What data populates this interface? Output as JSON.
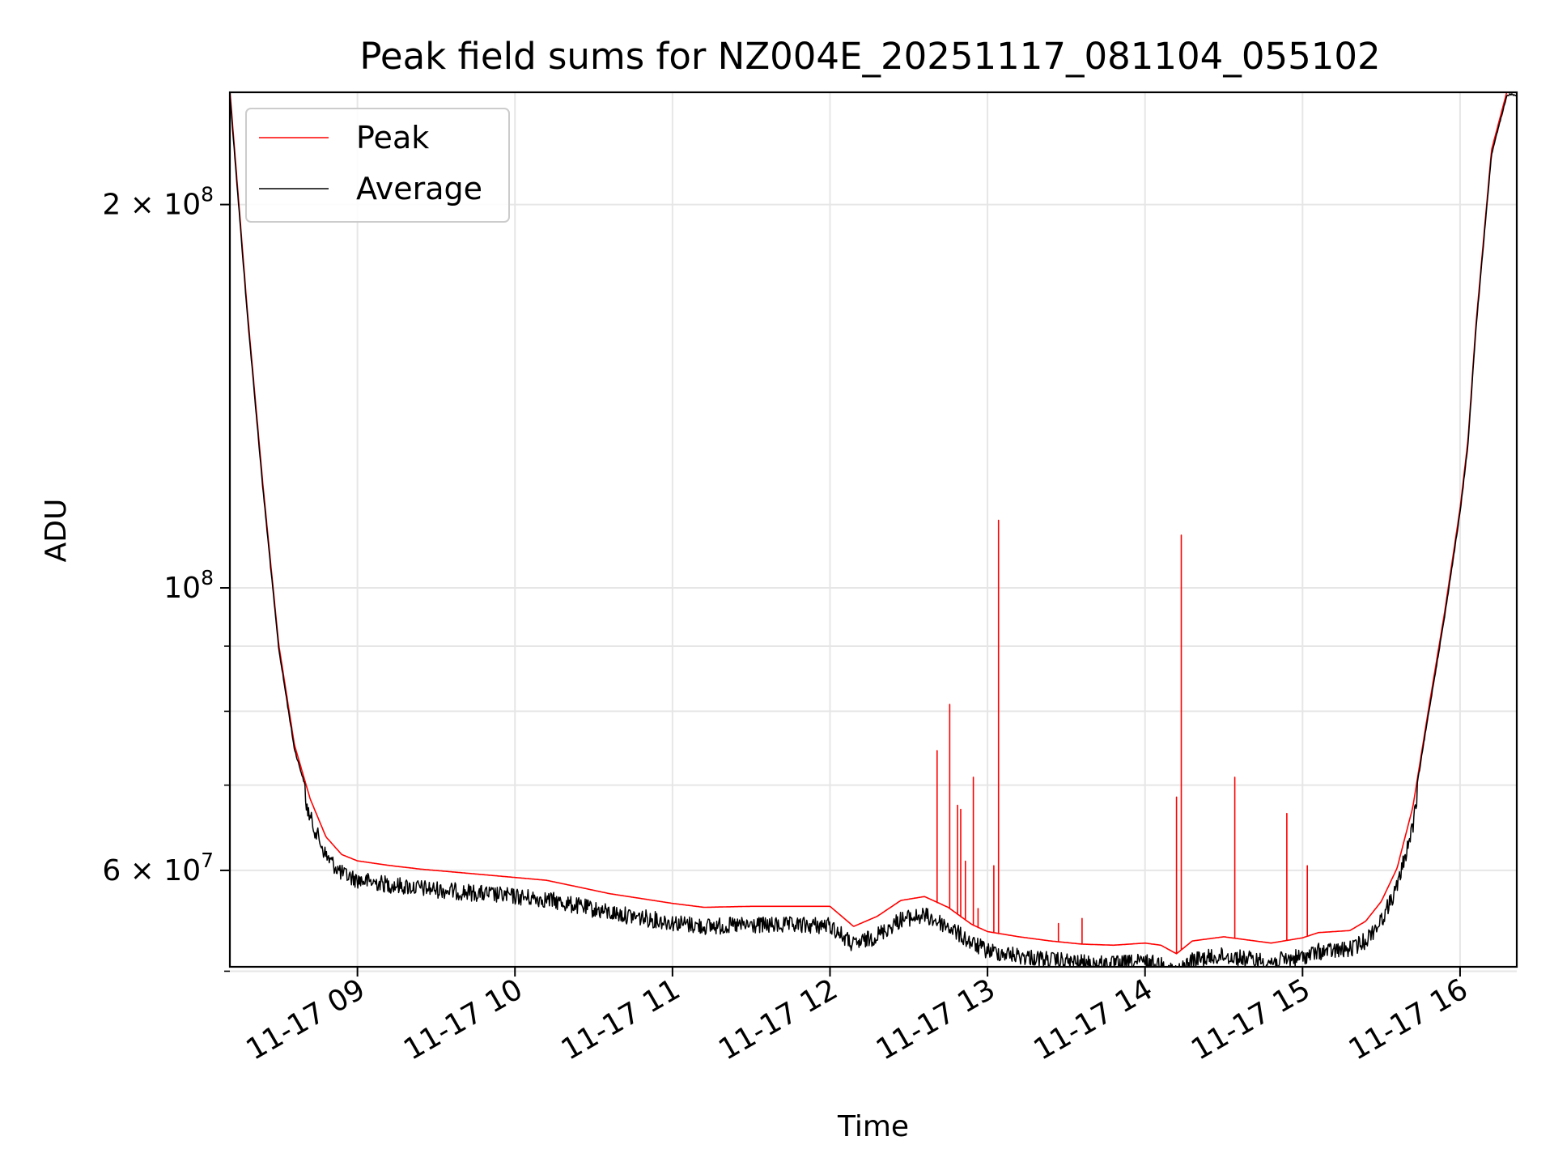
{
  "chart_data": {
    "type": "line",
    "title": "Peak field sums for NZ004E_20251117_081104_055102",
    "xlabel": "Time",
    "ylabel": "ADU",
    "yscale": "log",
    "xlim_hours": [
      8.19,
      16.36
    ],
    "ylim": [
      50400000,
      245000000
    ],
    "grid": true,
    "legend_position": "upper-left",
    "x_ticks": [
      {
        "value": 9,
        "label": "11-17 09"
      },
      {
        "value": 10,
        "label": "11-17 10"
      },
      {
        "value": 11,
        "label": "11-17 11"
      },
      {
        "value": 12,
        "label": "11-17 12"
      },
      {
        "value": 13,
        "label": "11-17 13"
      },
      {
        "value": 14,
        "label": "11-17 14"
      },
      {
        "value": 15,
        "label": "11-17 15"
      },
      {
        "value": 16,
        "label": "11-17 16"
      }
    ],
    "y_major_ticks": [
      {
        "value": 60000000,
        "mantissa": "6",
        "base": "10",
        "exp": "7"
      },
      {
        "value": 100000000,
        "mantissa": "",
        "base": "10",
        "exp": "8"
      },
      {
        "value": 200000000,
        "mantissa": "2",
        "base": "10",
        "exp": "8"
      }
    ],
    "y_minor_ticks": [
      50000000,
      70000000,
      80000000,
      90000000
    ],
    "colors": {
      "peak": "#ff0000",
      "average": "#000000"
    },
    "series": [
      {
        "name": "Peak",
        "color": "#ff0000",
        "baseline_x": [
          8.19,
          8.3,
          8.4,
          8.5,
          8.6,
          8.7,
          8.8,
          8.9,
          9.0,
          9.2,
          9.4,
          9.6,
          9.8,
          10.0,
          10.2,
          10.4,
          10.6,
          10.8,
          11.0,
          11.2,
          11.5,
          11.8,
          12.0,
          12.15,
          12.3,
          12.45,
          12.6,
          12.75,
          12.9,
          13.0,
          13.2,
          13.4,
          13.6,
          13.8,
          14.0,
          14.1,
          14.2,
          14.3,
          14.5,
          14.7,
          14.8,
          15.0,
          15.1,
          15.3,
          15.4,
          15.5,
          15.6,
          15.7,
          15.8,
          15.9,
          16.0,
          16.05,
          16.1,
          16.2,
          16.3,
          16.36
        ],
        "baseline_y": [
          245000000,
          165000000,
          120000000,
          90000000,
          75000000,
          68000000,
          63500000,
          61500000,
          60800000,
          60300000,
          59900000,
          59600000,
          59300000,
          59000000,
          58700000,
          58000000,
          57300000,
          56800000,
          56300000,
          55900000,
          56000000,
          56000000,
          56000000,
          54000000,
          55000000,
          56600000,
          57000000,
          55900000,
          54200000,
          53500000,
          53000000,
          52600000,
          52300000,
          52200000,
          52400000,
          52200000,
          51400000,
          52600000,
          53000000,
          52600000,
          52400000,
          52900000,
          53400000,
          53600000,
          54500000,
          56500000,
          60000000,
          67000000,
          80000000,
          95000000,
          115000000,
          130000000,
          160000000,
          220000000,
          245000000,
          245000000
        ],
        "spikes": [
          {
            "x": 12.68,
            "y": 74500000
          },
          {
            "x": 12.76,
            "y": 81000000
          },
          {
            "x": 12.81,
            "y": 67500000
          },
          {
            "x": 12.83,
            "y": 67000000
          },
          {
            "x": 12.86,
            "y": 61000000
          },
          {
            "x": 12.91,
            "y": 71000000
          },
          {
            "x": 12.94,
            "y": 56000000
          },
          {
            "x": 13.04,
            "y": 60500000
          },
          {
            "x": 13.07,
            "y": 113000000
          },
          {
            "x": 13.45,
            "y": 54500000
          },
          {
            "x": 13.6,
            "y": 55000000
          },
          {
            "x": 14.2,
            "y": 68500000
          },
          {
            "x": 14.23,
            "y": 110000000
          },
          {
            "x": 14.57,
            "y": 71000000
          },
          {
            "x": 14.9,
            "y": 66500000
          },
          {
            "x": 15.03,
            "y": 60500000
          }
        ]
      },
      {
        "name": "Average",
        "color": "#000000",
        "baseline_x": [
          8.19,
          8.3,
          8.4,
          8.5,
          8.6,
          8.7,
          8.8,
          8.9,
          9.0,
          9.2,
          9.4,
          9.6,
          9.8,
          10.0,
          10.2,
          10.4,
          10.6,
          10.8,
          11.0,
          11.2,
          11.5,
          11.8,
          12.0,
          12.15,
          12.3,
          12.45,
          12.6,
          12.75,
          12.9,
          13.0,
          13.2,
          13.4,
          13.6,
          13.8,
          14.0,
          14.1,
          14.2,
          14.3,
          14.5,
          14.7,
          14.8,
          15.0,
          15.1,
          15.3,
          15.4,
          15.5,
          15.6,
          15.7,
          15.8,
          15.9,
          16.0,
          16.05,
          16.1,
          16.2,
          16.3,
          16.36
        ],
        "baseline_y": [
          245000000,
          165000000,
          120000000,
          90000000,
          75000000,
          68000000,
          63500000,
          61500000,
          60800000,
          60300000,
          59900000,
          59600000,
          59300000,
          59000000,
          58700000,
          58000000,
          57300000,
          56800000,
          56300000,
          55900000,
          56000000,
          56000000,
          56000000,
          54000000,
          55000000,
          56600000,
          57000000,
          55900000,
          54200000,
          53500000,
          53000000,
          52600000,
          52300000,
          52200000,
          52400000,
          52200000,
          51400000,
          52600000,
          53000000,
          52600000,
          52400000,
          52900000,
          53400000,
          53600000,
          54500000,
          56500000,
          60000000,
          67000000,
          80000000,
          95000000,
          115000000,
          130000000,
          160000000,
          220000000,
          245000000,
          245000000
        ]
      }
    ],
    "legend": [
      {
        "label": "Peak",
        "color": "#ff0000"
      },
      {
        "label": "Average",
        "color": "#000000"
      }
    ]
  }
}
